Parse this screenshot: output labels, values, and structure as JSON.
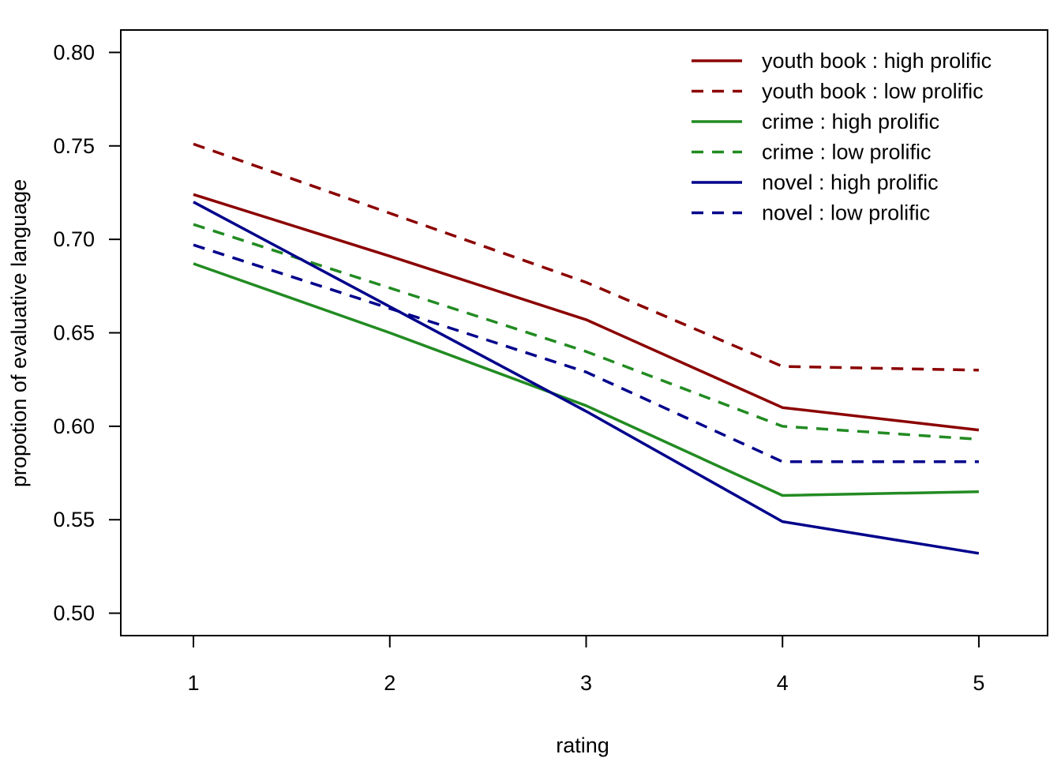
{
  "chart_data": {
    "type": "line",
    "title": "",
    "xlabel": "rating",
    "ylabel": "propotion of evaluative language",
    "x": [
      1,
      2,
      3,
      4,
      5
    ],
    "xlim": [
      0.63,
      5.35
    ],
    "ylim": [
      0.488,
      0.812
    ],
    "x_ticks": [
      "1",
      "2",
      "3",
      "4",
      "5"
    ],
    "y_ticks": [
      "0.50",
      "0.55",
      "0.60",
      "0.65",
      "0.70",
      "0.75",
      "0.80"
    ],
    "legend_position": "top-right",
    "grid": false,
    "series": [
      {
        "name": "youth book : high prolific",
        "color": "#8b0000",
        "dash": "solid",
        "values": [
          0.724,
          0.691,
          0.657,
          0.61,
          0.598
        ]
      },
      {
        "name": "youth book : low prolific",
        "color": "#8b0000",
        "dash": "dashed",
        "values": [
          0.751,
          0.714,
          0.677,
          0.632,
          0.63
        ]
      },
      {
        "name": "crime : high prolific",
        "color": "#228b22",
        "dash": "solid",
        "values": [
          0.687,
          0.65,
          0.611,
          0.563,
          0.565
        ]
      },
      {
        "name": "crime : low prolific",
        "color": "#228b22",
        "dash": "dashed",
        "values": [
          0.708,
          0.674,
          0.64,
          0.6,
          0.593
        ]
      },
      {
        "name": "novel : high prolific",
        "color": "#00008b",
        "dash": "solid",
        "values": [
          0.72,
          0.664,
          0.608,
          0.549,
          0.532
        ]
      },
      {
        "name": "novel : low prolific",
        "color": "#00008b",
        "dash": "dashed",
        "values": [
          0.697,
          0.663,
          0.629,
          0.581,
          0.581
        ]
      }
    ]
  }
}
